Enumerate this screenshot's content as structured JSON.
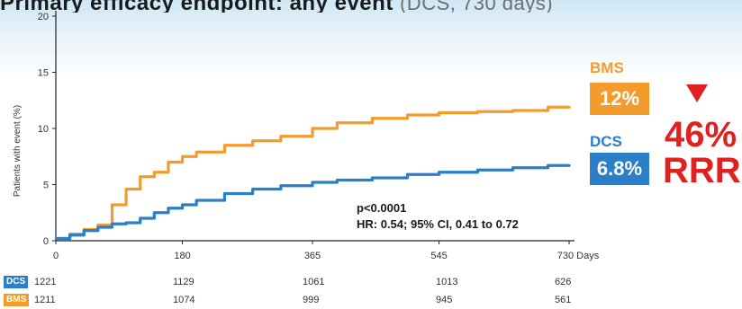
{
  "banner": {
    "text": "Primary efficacy endpoint: any event",
    "text_faded": "(DCS, 730 days)"
  },
  "colors": {
    "bms": "#f39c2c",
    "dcs": "#2a7fc8",
    "accent_red": "#e0211f"
  },
  "chart_data": {
    "type": "line",
    "title": "",
    "xlabel": "",
    "ylabel": "Patients with event (%)",
    "xlim": [
      0,
      730
    ],
    "ylim": [
      0,
      20
    ],
    "x_ticks": [
      "0",
      "180",
      "365",
      "545",
      "730 Days"
    ],
    "x_tick_values": [
      0,
      180,
      365,
      545,
      730
    ],
    "y_ticks": [
      "0",
      "5",
      "10",
      "15",
      "20"
    ],
    "y_tick_values": [
      0,
      5,
      10,
      15,
      20
    ],
    "grid": false,
    "series": [
      {
        "name": "BMS",
        "color": "#f39c2c",
        "x": [
          0,
          20,
          40,
          60,
          80,
          100,
          120,
          140,
          160,
          180,
          200,
          240,
          280,
          320,
          365,
          400,
          450,
          500,
          545,
          600,
          650,
          700,
          730
        ],
        "y": [
          0.2,
          0.6,
          1.0,
          1.4,
          3.2,
          4.6,
          5.7,
          6.1,
          7.0,
          7.5,
          7.9,
          8.5,
          8.9,
          9.3,
          10.0,
          10.5,
          10.9,
          11.2,
          11.4,
          11.5,
          11.6,
          11.9,
          12.0
        ]
      },
      {
        "name": "DCS",
        "color": "#2a7fc8",
        "x": [
          0,
          20,
          40,
          60,
          80,
          100,
          120,
          140,
          160,
          180,
          200,
          240,
          280,
          320,
          365,
          400,
          450,
          500,
          545,
          600,
          650,
          700,
          730
        ],
        "y": [
          0.2,
          0.5,
          0.9,
          1.2,
          1.5,
          1.6,
          2.0,
          2.5,
          2.9,
          3.2,
          3.6,
          4.2,
          4.6,
          4.9,
          5.2,
          5.4,
          5.6,
          5.9,
          6.1,
          6.3,
          6.5,
          6.7,
          6.8
        ]
      }
    ]
  },
  "stats": {
    "p_value": "p<0.0001",
    "hr": "HR: 0.54; 95% CI, 0.41 to 0.72"
  },
  "callouts": {
    "bms_label": "BMS",
    "bms_value": "12%",
    "dcs_label": "DCS",
    "dcs_value": "6.8%",
    "reduction_value": "46%",
    "reduction_label": "RRR"
  },
  "risk_table": {
    "rows": [
      {
        "label": "DCS",
        "values": [
          "1221",
          "1129",
          "1061",
          "1013",
          "626"
        ]
      },
      {
        "label": "BMS",
        "values": [
          "1211",
          "1074",
          "999",
          "945",
          "561"
        ]
      }
    ]
  }
}
